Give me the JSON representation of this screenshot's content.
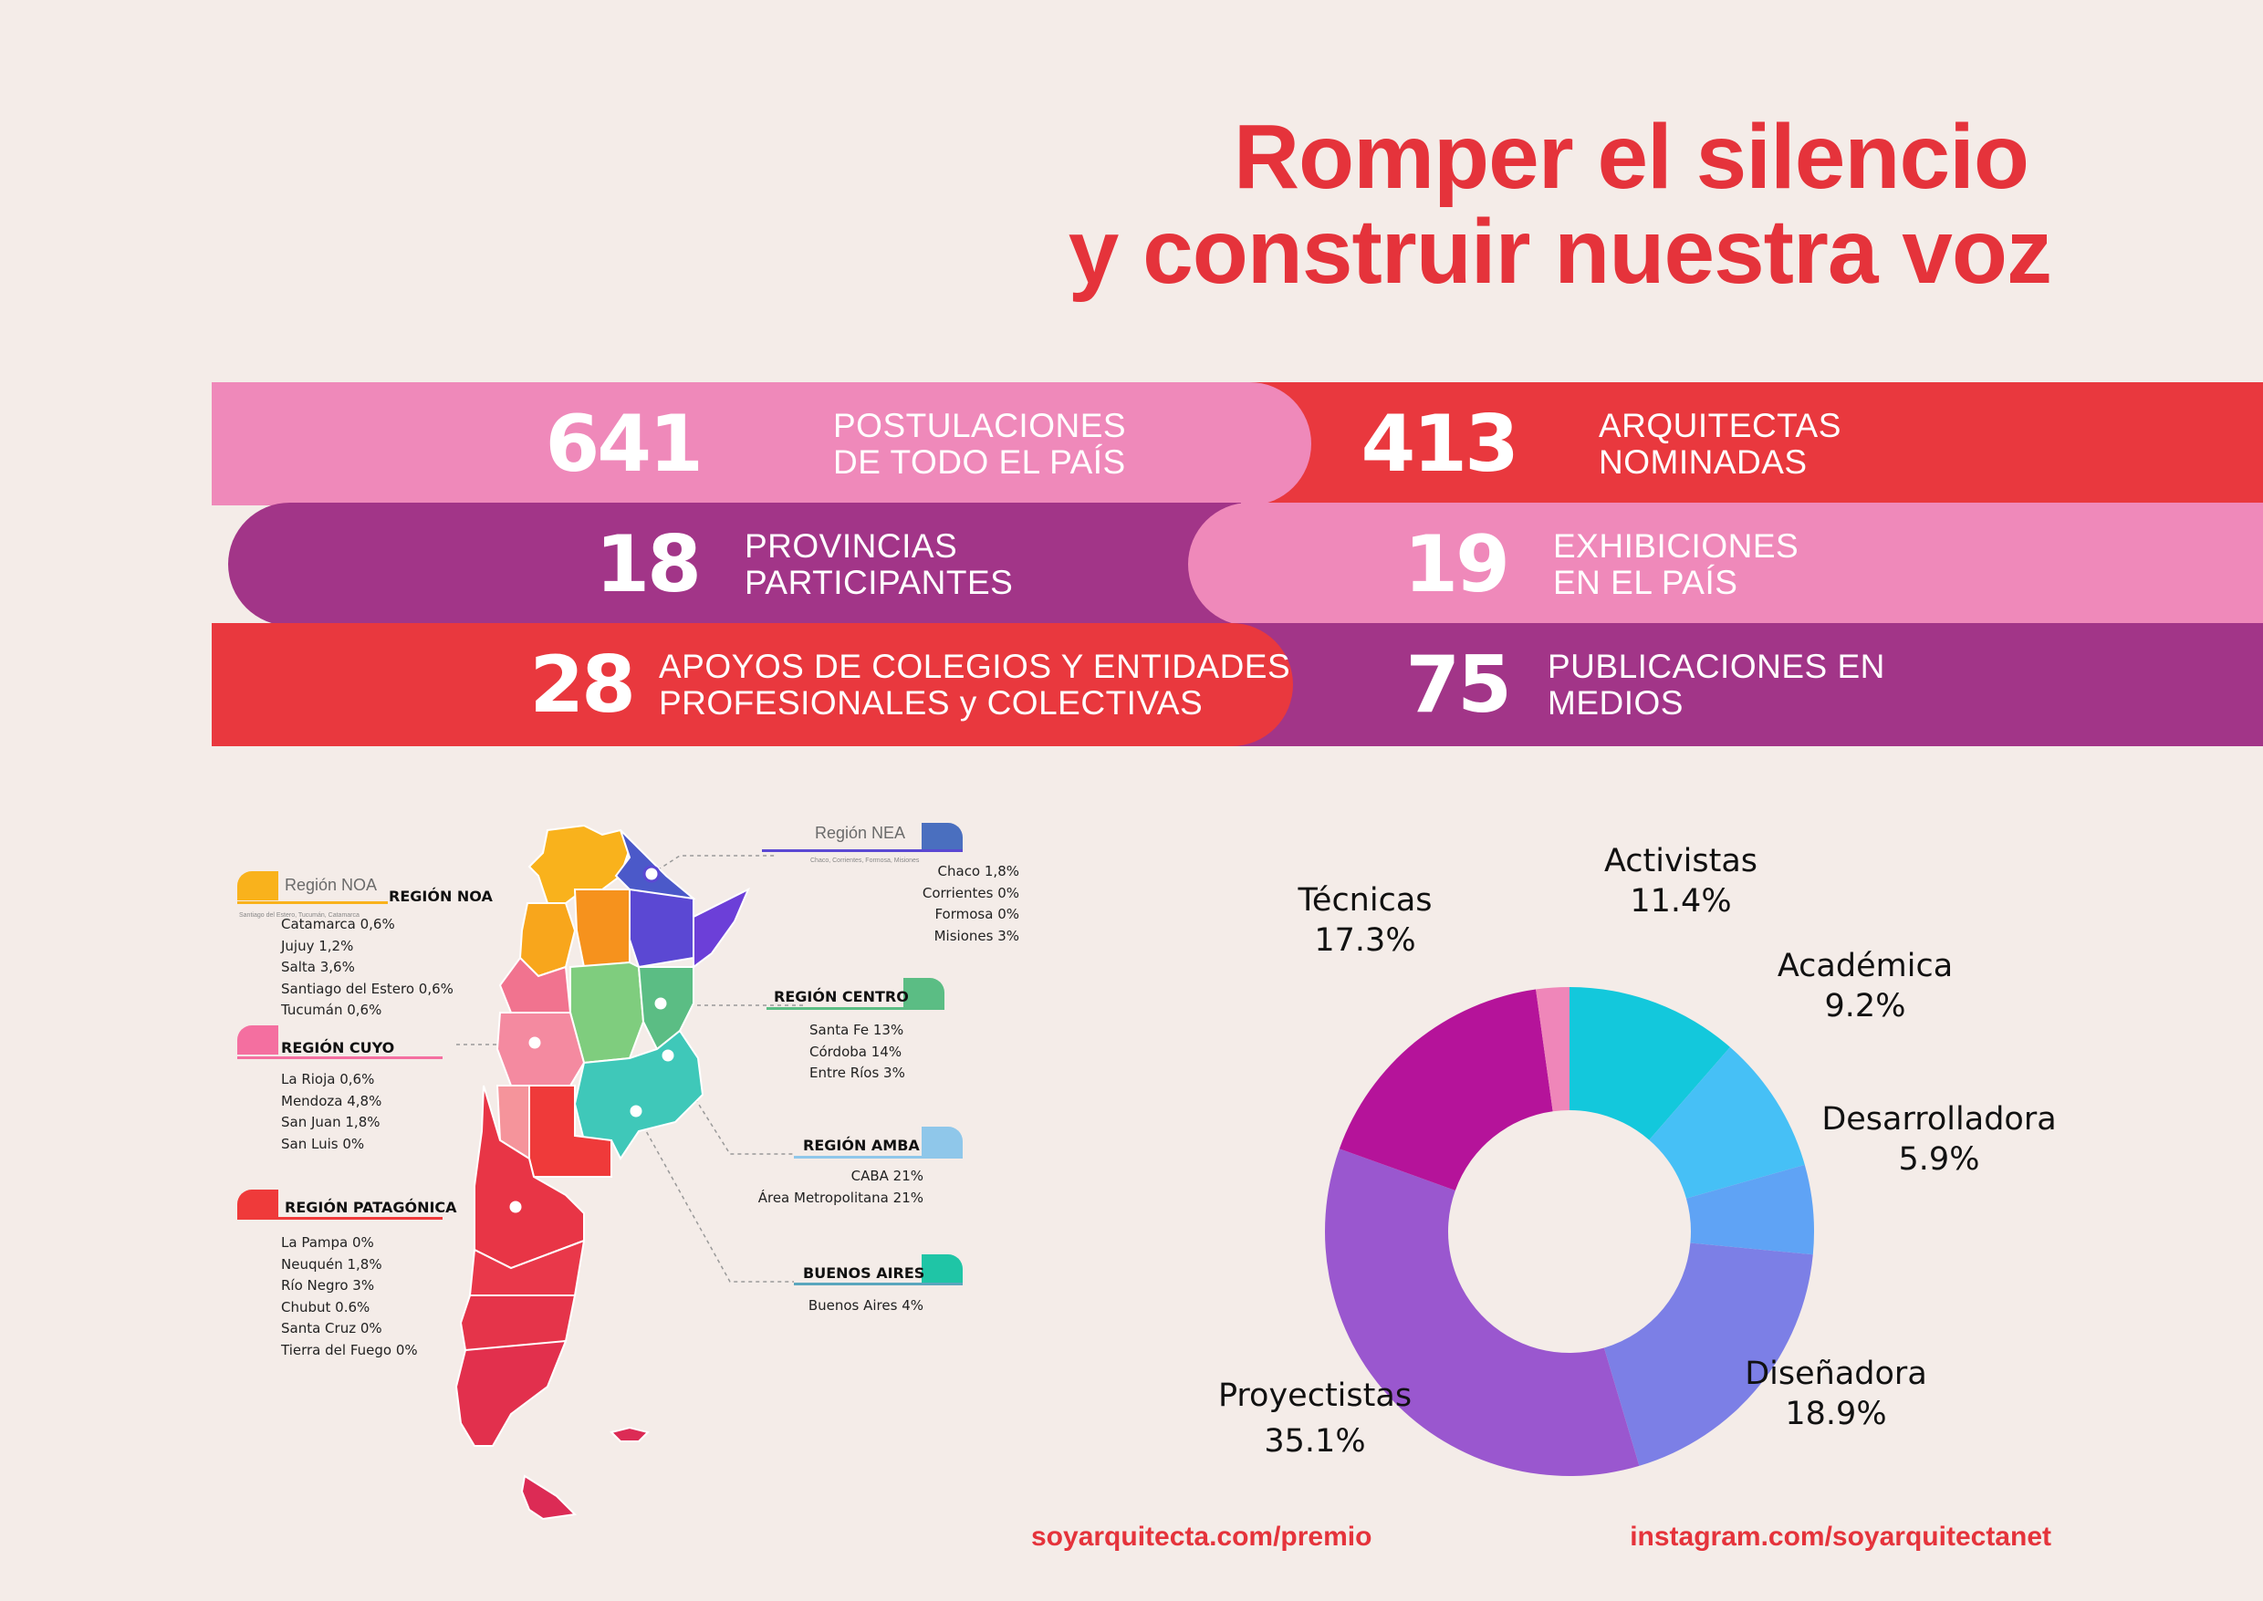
{
  "title": {
    "line1": "Romper el silencio",
    "line2": "y construir nuestra voz"
  },
  "stats": [
    {
      "value": "641",
      "label": "POSTULACIONES\nDE TODO EL PAÍS"
    },
    {
      "value": "413",
      "label": "ARQUITECTAS\nNOMINADAS"
    },
    {
      "value": "18",
      "label": "PROVINCIAS\nPARTICIPANTES"
    },
    {
      "value": "19",
      "label": "EXHIBICIONES\nEN EL PAÍS"
    },
    {
      "value": "28",
      "label": "APOYOS DE COLEGIOS Y ENTIDADES\nPROFESIONALES y COLECTIVAS"
    },
    {
      "value": "75",
      "label": "PUBLICACIONES EN\nMEDIOS"
    }
  ],
  "map": {
    "nea": {
      "tab_title": "Región NEA",
      "tab_sub": "Chaco, Corrientes, Formosa, Misiones",
      "items": [
        "Chaco   1,8%",
        "Corrientes   0%",
        "Formosa   0%",
        "Misiones   3%"
      ]
    },
    "noa": {
      "tab_title": "Región NOA",
      "tab_sub": "Santiago del Estero, Tucumán, Catamarca",
      "heading": "REGIÓN NOA",
      "items": [
        "Catamarca   0,6%",
        "Jujuy   1,2%",
        "Salta   3,6%",
        "Santiago del Estero   0,6%",
        "Tucumán   0,6%"
      ]
    },
    "centro": {
      "heading": "REGIÓN CENTRO",
      "items": [
        "Santa Fe   13%",
        "Córdoba   14%",
        "Entre Ríos   3%"
      ]
    },
    "cuyo": {
      "heading": "REGIÓN CUYO",
      "items": [
        "La Rioja   0,6%",
        "Mendoza   4,8%",
        "San Juan   1,8%",
        "San Luis   0%"
      ]
    },
    "amba": {
      "heading": "REGIÓN AMBA",
      "items": [
        "CABA   21%",
        "Área Metropolitana   21%"
      ]
    },
    "patagonia": {
      "heading": "REGIÓN PATAGÓNICA",
      "items": [
        "La Pampa   0%",
        "Neuquén   1,8%",
        "Río Negro   3%",
        "Chubut   0.6%",
        "Santa Cruz   0%",
        "Tierra del Fuego   0%"
      ]
    },
    "buenos_aires": {
      "heading": "BUENOS AIRES",
      "items": [
        "Buenos Aires   4%"
      ]
    }
  },
  "chart_data": {
    "type": "pie",
    "donut": true,
    "labels": [
      "Activistas",
      "Académica",
      "Desarrolladora",
      "Diseñadora",
      "Proyectistas",
      "Técnicas",
      ""
    ],
    "values": [
      11.4,
      9.2,
      5.9,
      18.9,
      35.1,
      17.3,
      2.2
    ],
    "value_labels": [
      "11.4%",
      "9.2%",
      "5.9%",
      "18.9%",
      "35.1%",
      "17.3%",
      ""
    ],
    "colors": [
      "#13c8dc",
      "#46c0f6",
      "#5fa3f5",
      "#7c7fe6",
      "#9a57cf",
      "#b5139a",
      "#ef86b9"
    ]
  },
  "footer": {
    "left": "soyarquitecta.com/premio",
    "right": "instagram.com/soyarquitectanet"
  }
}
